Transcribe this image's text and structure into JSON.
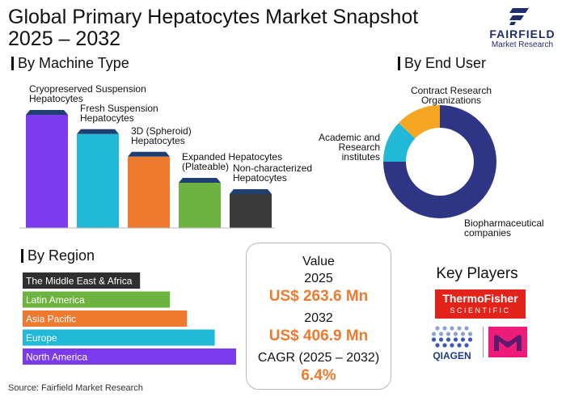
{
  "title": "Global Primary Hepatocytes Market Snapshot 2025 – 2032",
  "logo": {
    "name": "FAIRFIELD",
    "sub": "Market Research"
  },
  "sections": {
    "machine": "By Machine Type",
    "end_user": "By End User",
    "region": "By Region"
  },
  "chart_data": [
    {
      "type": "bar",
      "title": "By Machine Type",
      "categories": [
        "Cryopreserved Suspension Hepatocytes",
        "Fresh Suspension Hepatocytes",
        "3D (Spheroid) Hepatocytes",
        "Expanded Hepatocytes (Plateable)",
        "Non-characterized Hepatocytes"
      ],
      "label_lines": [
        [
          "Cryopreserved Suspension",
          "Hepatocytes"
        ],
        [
          "Fresh Suspension",
          "Hepatocytes"
        ],
        [
          "3D (Spheroid)",
          "Hepatocytes"
        ],
        [
          "Expanded Hepatocytes",
          "(Plateable)"
        ],
        [
          "Non-characterized",
          "Hepatocytes"
        ]
      ],
      "values": [
        100,
        83,
        63,
        40,
        30
      ],
      "colors": [
        "#7c3aed",
        "#22b8d8",
        "#ee7a2f",
        "#6db33f",
        "#3a3a3a"
      ],
      "cap_colors": [
        "#1f3f73",
        "#1f3f73",
        "#1f3f73",
        "#1f3f73",
        "#1f3f73"
      ]
    },
    {
      "type": "pie",
      "title": "By End User",
      "categories": [
        "Biopharmaceutical companies",
        "Academic and Research institutes",
        "Contract Research Organizations"
      ],
      "label_lines": [
        [
          "Biopharmaceutical",
          "companies"
        ],
        [
          "Academic and",
          "Research",
          "institutes"
        ],
        [
          "Contract Research",
          "Organizations"
        ]
      ],
      "values": [
        75,
        12,
        13
      ],
      "colors": [
        "#2f3585",
        "#22b8d8",
        "#f5a623"
      ]
    },
    {
      "type": "bar",
      "orientation": "horizontal",
      "title": "By Region",
      "categories": [
        "The Middle East & Africa",
        "Latin America",
        "Asia Pacific",
        "Europe",
        "North America"
      ],
      "values": [
        55,
        69,
        77,
        90,
        100
      ],
      "colors": [
        "#2f2f2f",
        "#6db33f",
        "#ee7a2f",
        "#22b8d8",
        "#7c3aed"
      ]
    }
  ],
  "value_box": {
    "value_label": "Value",
    "year1": "2025",
    "value1": "US$ 263.6 Mn",
    "year2": "2032",
    "value2": "US$ 406.9 Mn",
    "cagr_label": "CAGR (2025 – 2032)",
    "cagr_value": "6.4%"
  },
  "key_players": {
    "title": "Key Players",
    "thermo_main": "ThermoFisher",
    "thermo_sub": "SCIENTIFIC",
    "qiagen": "QIAGEN"
  },
  "source": "Source: Fairfield Market Research"
}
